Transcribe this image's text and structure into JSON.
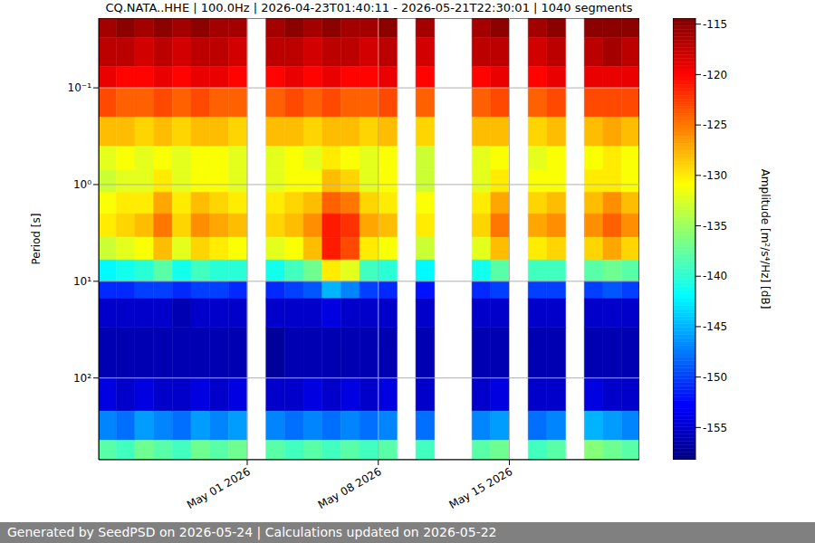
{
  "chart_data": {
    "type": "heatmap",
    "title": "CQ.NATA..HHE | 100.0Hz | 2026-04-23T01:40:11 - 2026-05-21T22:30:01 | 1040 segments",
    "y_label": "Period [s]",
    "log": "y",
    "grid": true,
    "x": [
      "2026-04-23",
      "2026-04-24",
      "2026-04-25",
      "2026-04-26",
      "2026-04-27",
      "2026-04-28",
      "2026-04-29",
      "2026-04-30",
      "2026-05-01",
      "2026-05-02",
      "2026-05-03",
      "2026-05-04",
      "2026-05-05",
      "2026-05-06",
      "2026-05-07",
      "2026-05-08",
      "2026-05-09",
      "2026-05-10",
      "2026-05-11",
      "2026-05-12",
      "2026-05-13",
      "2026-05-14",
      "2026-05-15",
      "2026-05-16",
      "2026-05-17",
      "2026-05-18",
      "2026-05-19",
      "2026-05-20",
      "2026-05-21"
    ],
    "xlim": [
      "2026-04-23T01:40:11",
      "2026-05-21T22:30:01"
    ],
    "xticks": [
      {
        "value": "2026-05-01",
        "label": "May 01 2026"
      },
      {
        "value": "2026-05-08",
        "label": "May 08 2026"
      },
      {
        "value": "2026-05-15",
        "label": "May 15 2026"
      }
    ],
    "y_edges": [
      0.019,
      0.03,
      0.06,
      0.1,
      0.2,
      0.4,
      0.7,
      1.2,
      2,
      3.5,
      6,
      10,
      15,
      30,
      100,
      220,
      440,
      700
    ],
    "ylim": [
      0.019,
      700
    ],
    "yticks": [
      {
        "value": 0.1,
        "label": "10⁻¹"
      },
      {
        "value": 1,
        "label": "10⁰"
      },
      {
        "value": 10,
        "label": "10¹"
      },
      {
        "value": 100,
        "label": "10²"
      }
    ],
    "cells": [
      [
        -116,
        -117,
        -119,
        -123,
        -128,
        -132,
        -133,
        -131,
        -130,
        -133,
        -142,
        -151,
        -155,
        -156,
        -154,
        -147,
        -138
      ],
      [
        -115,
        -117,
        -120,
        -124,
        -128,
        -131,
        -132,
        -130,
        -129,
        -132,
        -141,
        -151,
        -155,
        -156,
        -155,
        -148,
        -139
      ],
      [
        -116,
        -118,
        -120,
        -124,
        -129,
        -132,
        -132,
        -130,
        -128,
        -131,
        -140,
        -150,
        -155,
        -156,
        -154,
        -146,
        -137
      ],
      [
        -115,
        -117,
        -119,
        -123,
        -128,
        -131,
        -130,
        -127,
        -125,
        -128,
        -138,
        -150,
        -155,
        -156,
        -155,
        -147,
        -138
      ],
      [
        -116,
        -118,
        -120,
        -124,
        -129,
        -132,
        -132,
        -130,
        -129,
        -132,
        -141,
        -151,
        -156,
        -156,
        -155,
        -148,
        -139
      ],
      [
        -115,
        -117,
        -119,
        -123,
        -128,
        -131,
        -131,
        -128,
        -126,
        -129,
        -139,
        -150,
        -155,
        -156,
        -154,
        -146,
        -137
      ],
      [
        -116,
        -117,
        -119,
        -124,
        -128,
        -131,
        -131,
        -129,
        -127,
        -130,
        -140,
        -150,
        -155,
        -156,
        -155,
        -147,
        -138
      ],
      [
        -116,
        -118,
        -120,
        -124,
        -129,
        -132,
        -132,
        -130,
        -128,
        -131,
        -140,
        -151,
        -155,
        -156,
        -154,
        -146,
        -137
      ],
      null,
      [
        -116,
        -117,
        -120,
        -124,
        -128,
        -132,
        -132,
        -130,
        -129,
        -132,
        -141,
        -151,
        -155,
        -157,
        -155,
        -147,
        -138
      ],
      [
        -115,
        -117,
        -119,
        -123,
        -128,
        -131,
        -131,
        -129,
        -128,
        -131,
        -139,
        -150,
        -155,
        -156,
        -155,
        -148,
        -139
      ],
      [
        -116,
        -118,
        -120,
        -124,
        -129,
        -132,
        -131,
        -128,
        -126,
        -128,
        -137,
        -149,
        -155,
        -156,
        -154,
        -147,
        -138
      ],
      [
        -115,
        -117,
        -119,
        -123,
        -128,
        -130,
        -128,
        -124,
        -121,
        -121,
        -130,
        -145,
        -154,
        -156,
        -155,
        -148,
        -139
      ],
      [
        -116,
        -117,
        -120,
        -124,
        -128,
        -131,
        -129,
        -125,
        -122,
        -123,
        -132,
        -147,
        -155,
        -156,
        -154,
        -147,
        -138
      ],
      [
        -116,
        -118,
        -120,
        -124,
        -129,
        -132,
        -132,
        -129,
        -127,
        -130,
        -139,
        -150,
        -155,
        -156,
        -155,
        -148,
        -139
      ],
      [
        -115,
        -117,
        -119,
        -123,
        -128,
        -131,
        -131,
        -130,
        -128,
        -131,
        -140,
        -151,
        -155,
        -156,
        -154,
        -147,
        -138
      ],
      null,
      [
        -116,
        -118,
        -120,
        -124,
        -129,
        -133,
        -133,
        -131,
        -130,
        -133,
        -142,
        -152,
        -155,
        -156,
        -155,
        -148,
        -139
      ],
      null,
      null,
      [
        -116,
        -117,
        -120,
        -124,
        -128,
        -132,
        -132,
        -130,
        -129,
        -132,
        -141,
        -151,
        -155,
        -156,
        -155,
        -147,
        -138
      ],
      [
        -115,
        -117,
        -119,
        -123,
        -128,
        -131,
        -130,
        -127,
        -125,
        -128,
        -138,
        -150,
        -155,
        -156,
        -154,
        -146,
        -137
      ],
      null,
      [
        -116,
        -118,
        -120,
        -124,
        -129,
        -132,
        -131,
        -129,
        -127,
        -130,
        -139,
        -150,
        -155,
        -156,
        -155,
        -148,
        -139
      ],
      [
        -115,
        -117,
        -119,
        -123,
        -128,
        -131,
        -131,
        -128,
        -126,
        -129,
        -139,
        -150,
        -155,
        -156,
        -155,
        -147,
        -138
      ],
      null,
      [
        -115,
        -117,
        -119,
        -123,
        -128,
        -131,
        -130,
        -128,
        -126,
        -129,
        -138,
        -150,
        -155,
        -156,
        -154,
        -145,
        -136
      ],
      [
        -115,
        -116,
        -119,
        -123,
        -127,
        -130,
        -130,
        -126,
        -124,
        -127,
        -137,
        -149,
        -155,
        -156,
        -155,
        -146,
        -137
      ],
      [
        -115,
        -117,
        -119,
        -123,
        -128,
        -131,
        -131,
        -128,
        -126,
        -129,
        -138,
        -150,
        -155,
        -156,
        -155,
        -147,
        -138
      ]
    ],
    "colorbar": {
      "label": "Amplitude [m²/s⁴/Hz] [dB]",
      "range": [
        -158.2,
        -114.4
      ],
      "ticks": [
        -115,
        -120,
        -125,
        -130,
        -135,
        -140,
        -145,
        -150,
        -155
      ]
    },
    "footer": "Generated by SeedPSD on 2026-05-24 | Calculations updated on 2026-05-22"
  }
}
